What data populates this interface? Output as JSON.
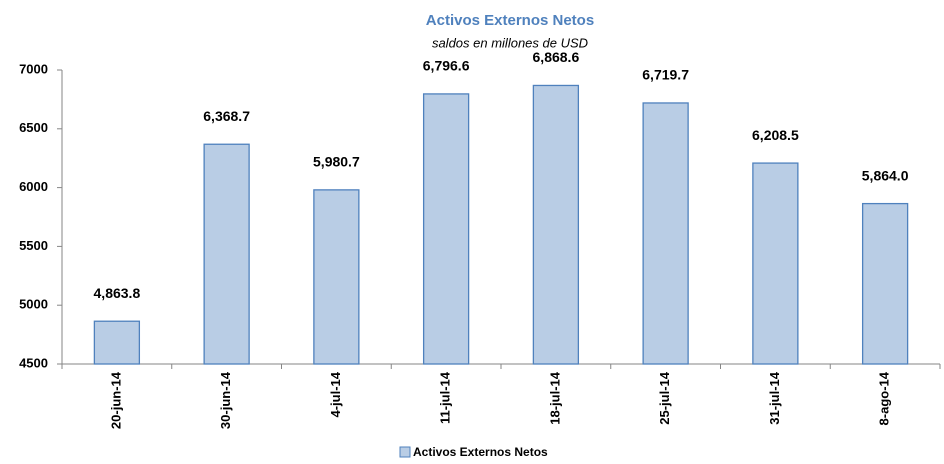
{
  "chart_data": {
    "type": "bar",
    "title": "Activos Externos Netos",
    "subtitle": "saldos en millones de USD",
    "categories": [
      "20-jun-14",
      "30-jun-14",
      "4-jul-14",
      "11-jul-14",
      "18-jul-14",
      "25-jul-14",
      "31-jul-14",
      "8-ago-14"
    ],
    "series": [
      {
        "name": "Activos Externos Netos",
        "color": "#b9cde5",
        "values": [
          4863.8,
          6368.7,
          5980.7,
          6796.6,
          6868.6,
          6719.7,
          6208.5,
          5864.0
        ],
        "value_labels": [
          "4,863.8",
          "6,368.7",
          "5,980.7",
          "6,796.6",
          "6,868.6",
          "6,719.7",
          "6,208.5",
          "5,864.0"
        ]
      }
    ],
    "ylim": [
      4500,
      7000
    ],
    "yticks": [
      4500,
      5000,
      5500,
      6000,
      6500,
      7000
    ],
    "grid": false,
    "legend": "bottom"
  }
}
